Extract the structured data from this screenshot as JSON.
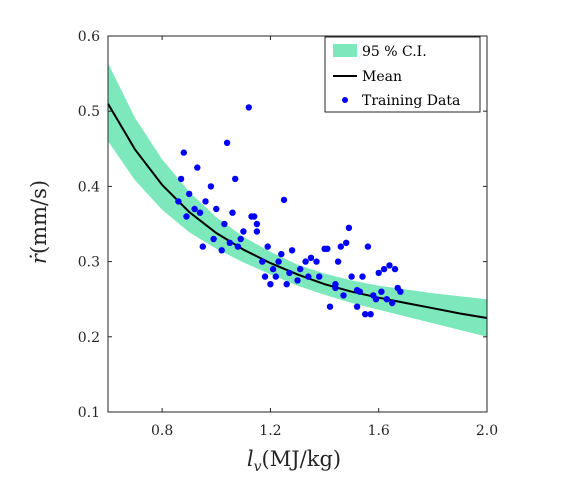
{
  "chart_data": {
    "type": "scatter",
    "xlabel": "l_v(MJ/kg)",
    "ylabel": "ṙ(mm/s)",
    "xlim": [
      0.6,
      2.0
    ],
    "ylim": [
      0.1,
      0.6
    ],
    "xticks": [
      {
        "value": 0.8,
        "label": "0.8"
      },
      {
        "value": 1.2,
        "label": "1.2"
      },
      {
        "value": 1.6,
        "label": "1.6"
      },
      {
        "value": 2.0,
        "label": "2.0"
      }
    ],
    "yticks": [
      {
        "value": 0.1,
        "label": "0.1"
      },
      {
        "value": 0.2,
        "label": "0.2"
      },
      {
        "value": 0.3,
        "label": "0.3"
      },
      {
        "value": 0.4,
        "label": "0.4"
      },
      {
        "value": 0.5,
        "label": "0.5"
      },
      {
        "value": 0.6,
        "label": "0.6"
      }
    ],
    "legend_position": "top-right",
    "grid": false,
    "series": [
      {
        "name": "95 % C.I.",
        "kind": "band",
        "color": "#7de8bc",
        "x": [
          0.6,
          0.7,
          0.8,
          0.9,
          1.0,
          1.1,
          1.2,
          1.3,
          1.4,
          1.5,
          1.6,
          1.7,
          1.8,
          1.9,
          2.0
        ],
        "lower": [
          0.46,
          0.408,
          0.369,
          0.339,
          0.317,
          0.299,
          0.283,
          0.268,
          0.256,
          0.245,
          0.236,
          0.227,
          0.218,
          0.209,
          0.2
        ],
        "upper": [
          0.564,
          0.491,
          0.436,
          0.393,
          0.359,
          0.333,
          0.313,
          0.296,
          0.284,
          0.275,
          0.268,
          0.263,
          0.258,
          0.254,
          0.25
        ]
      },
      {
        "name": "Mean",
        "kind": "line",
        "color": "#000000",
        "x": [
          0.6,
          0.7,
          0.8,
          0.9,
          1.0,
          1.1,
          1.2,
          1.3,
          1.4,
          1.5,
          1.6,
          1.7,
          1.8,
          1.9,
          2.0
        ],
        "y": [
          0.51,
          0.449,
          0.402,
          0.366,
          0.338,
          0.316,
          0.298,
          0.283,
          0.27,
          0.26,
          0.252,
          0.245,
          0.238,
          0.231,
          0.225
        ]
      },
      {
        "name": "Training Data",
        "kind": "scatter",
        "color": "#0000ff",
        "points": [
          [
            0.86,
            0.38
          ],
          [
            0.87,
            0.41
          ],
          [
            0.88,
            0.445
          ],
          [
            0.89,
            0.36
          ],
          [
            0.9,
            0.39
          ],
          [
            0.92,
            0.37
          ],
          [
            0.93,
            0.425
          ],
          [
            0.94,
            0.365
          ],
          [
            0.95,
            0.32
          ],
          [
            0.96,
            0.38
          ],
          [
            0.98,
            0.4
          ],
          [
            0.99,
            0.33
          ],
          [
            1.0,
            0.37
          ],
          [
            1.02,
            0.315
          ],
          [
            1.03,
            0.35
          ],
          [
            1.04,
            0.458
          ],
          [
            1.05,
            0.325
          ],
          [
            1.06,
            0.365
          ],
          [
            1.07,
            0.41
          ],
          [
            1.08,
            0.32
          ],
          [
            1.09,
            0.33
          ],
          [
            1.1,
            0.34
          ],
          [
            1.12,
            0.505
          ],
          [
            1.13,
            0.36
          ],
          [
            1.14,
            0.36
          ],
          [
            1.15,
            0.35
          ],
          [
            1.17,
            0.3
          ],
          [
            1.18,
            0.28
          ],
          [
            1.19,
            0.32
          ],
          [
            1.2,
            0.27
          ],
          [
            1.21,
            0.29
          ],
          [
            1.22,
            0.28
          ],
          [
            1.23,
            0.3
          ],
          [
            1.24,
            0.31
          ],
          [
            1.25,
            0.382
          ],
          [
            1.26,
            0.27
          ],
          [
            1.27,
            0.285
          ],
          [
            1.28,
            0.315
          ],
          [
            1.3,
            0.275
          ],
          [
            1.31,
            0.29
          ],
          [
            1.33,
            0.3
          ],
          [
            1.34,
            0.28
          ],
          [
            1.35,
            0.305
          ],
          [
            1.37,
            0.3
          ],
          [
            1.38,
            0.28
          ],
          [
            1.4,
            0.317
          ],
          [
            1.41,
            0.317
          ],
          [
            1.42,
            0.24
          ],
          [
            1.44,
            0.265
          ],
          [
            1.45,
            0.3
          ],
          [
            1.46,
            0.32
          ],
          [
            1.47,
            0.255
          ],
          [
            1.48,
            0.325
          ],
          [
            1.49,
            0.345
          ],
          [
            1.5,
            0.28
          ],
          [
            1.52,
            0.262
          ],
          [
            1.53,
            0.26
          ],
          [
            1.54,
            0.28
          ],
          [
            1.55,
            0.23
          ],
          [
            1.56,
            0.32
          ],
          [
            1.57,
            0.23
          ],
          [
            1.58,
            0.255
          ],
          [
            1.59,
            0.25
          ],
          [
            1.6,
            0.285
          ],
          [
            1.61,
            0.26
          ],
          [
            1.62,
            0.29
          ],
          [
            1.63,
            0.25
          ],
          [
            1.64,
            0.295
          ],
          [
            1.65,
            0.245
          ],
          [
            1.66,
            0.29
          ],
          [
            1.67,
            0.265
          ],
          [
            1.68,
            0.26
          ],
          [
            1.44,
            0.27
          ],
          [
            1.52,
            0.24
          ],
          [
            1.15,
            0.34
          ]
        ]
      }
    ]
  }
}
